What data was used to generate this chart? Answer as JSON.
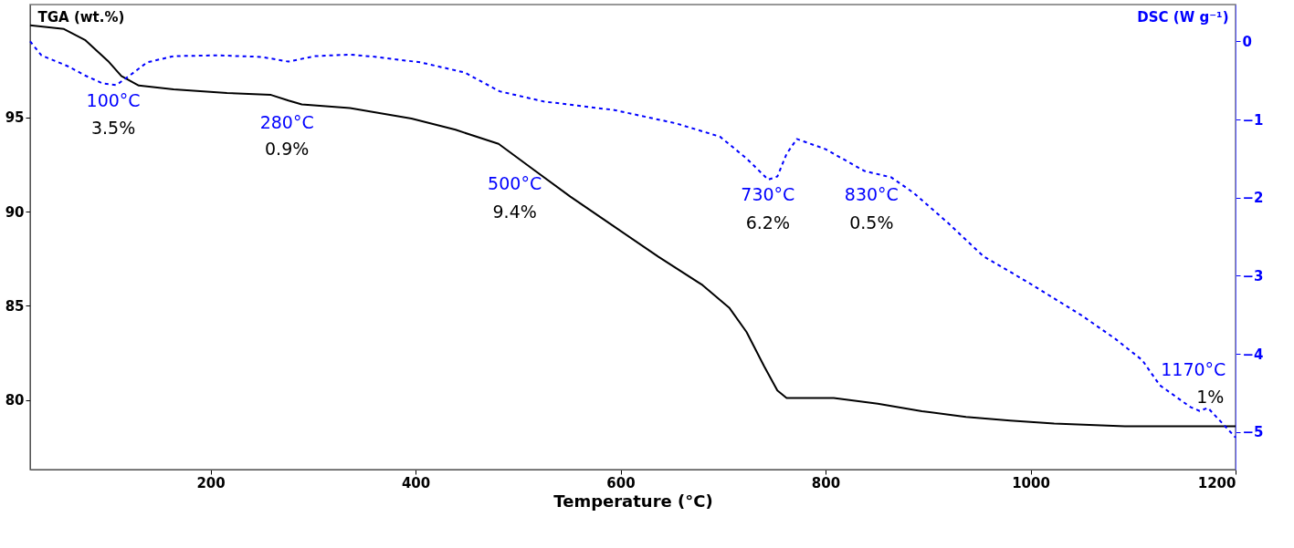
{
  "chart_data": {
    "type": "line",
    "xlabel": "Temperature (°C)",
    "ylabel": "TGA (wt.%)",
    "y2label": "DSC (W g⁻¹)",
    "xlim": [
      24,
      1200
    ],
    "xticks": [
      200,
      400,
      600,
      800,
      1000,
      1200
    ],
    "ylim": [
      76.3,
      101
    ],
    "yticks": [
      80,
      85,
      90,
      95
    ],
    "y2lim": [
      -5.48,
      0.47
    ],
    "y2ticks": [
      -5,
      -4,
      -3,
      -2,
      -1,
      0
    ],
    "grid": false,
    "series": [
      {
        "color": "#000000",
        "line_style": "solid",
        "x": [
          24,
          57,
          78,
          100,
          113,
          130,
          164,
          216,
          259,
          276,
          289,
          336,
          396,
          439,
          481,
          516,
          551,
          594,
          637,
          680,
          706,
          723,
          740,
          753,
          762,
          808,
          851,
          894,
          937,
          980,
          1023,
          1092,
          1200
        ],
        "values": [
          99.9,
          99.7,
          99.1,
          98.0,
          97.2,
          96.7,
          96.5,
          96.3,
          96.2,
          95.9,
          95.7,
          95.5,
          94.95,
          94.35,
          93.6,
          92.2,
          90.8,
          89.2,
          87.6,
          86.1,
          84.9,
          83.6,
          81.8,
          80.5,
          80.1,
          80.1,
          79.8,
          79.4,
          79.1,
          78.9,
          78.75,
          78.6,
          78.6
        ]
      },
      {
        "axis": "y2",
        "color": "#0000ff",
        "line_style": "dashed",
        "x": [
          24,
          35,
          61,
          78,
          95,
          108,
          121,
          138,
          164,
          207,
          250,
          276,
          302,
          336,
          362,
          405,
          448,
          482,
          525,
          594,
          654,
          697,
          723,
          744,
          753,
          762,
          772,
          800,
          838,
          864,
          886,
          920,
          954,
          997,
          1049,
          1083,
          1109,
          1126,
          1156,
          1165,
          1173,
          1188,
          1200
        ],
        "values": [
          0,
          -0.18,
          -0.32,
          -0.44,
          -0.54,
          -0.56,
          -0.44,
          -0.27,
          -0.19,
          -0.18,
          -0.2,
          -0.26,
          -0.19,
          -0.17,
          -0.2,
          -0.27,
          -0.4,
          -0.64,
          -0.77,
          -0.88,
          -1.05,
          -1.22,
          -1.5,
          -1.77,
          -1.73,
          -1.44,
          -1.25,
          -1.38,
          -1.66,
          -1.74,
          -1.94,
          -2.33,
          -2.75,
          -3.08,
          -3.5,
          -3.81,
          -4.08,
          -4.4,
          -4.68,
          -4.73,
          -4.69,
          -4.9,
          -5.07
        ]
      }
    ],
    "annotations": [
      "100°C",
      "3.5%",
      "280°C",
      "0.9%",
      "500°C",
      "9.4%",
      "730°C",
      "6.2%",
      "830°C",
      "0.5%",
      "1170°C",
      "1%"
    ]
  }
}
